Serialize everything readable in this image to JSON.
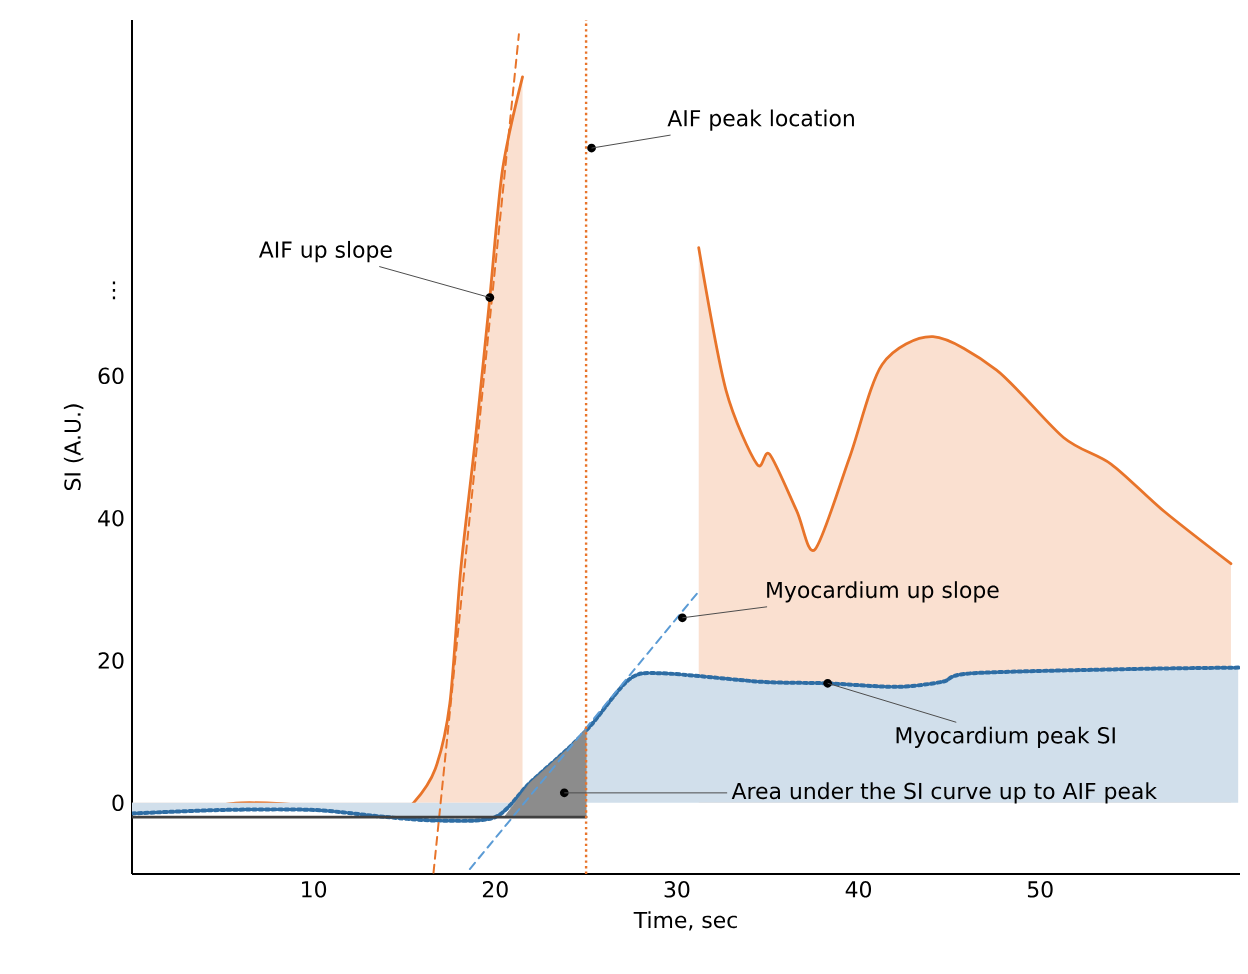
{
  "chart_data": {
    "type": "area",
    "xlabel": "Time, sec",
    "ylabel": "SI (A.U.)",
    "xlim": [
      0,
      61
    ],
    "ylim": [
      -10,
      110
    ],
    "xticks": [
      10,
      20,
      30,
      40,
      50
    ],
    "yticks": [
      0,
      20,
      40,
      60,
      {
        "value": 72,
        "label": "⋮"
      }
    ],
    "grid": false,
    "series": [
      {
        "color": "#e8742a",
        "line_style": "solid",
        "x": [
          0,
          3,
          6,
          10,
          13,
          14.5,
          15.5,
          16.7,
          17.5,
          18.1,
          18.9,
          19.7,
          20.4,
          21.5,
          26,
          31.2,
          32.7,
          34.4,
          35.1,
          36.6,
          37.6,
          39.5,
          41.3,
          44.1,
          47.6,
          51.3,
          53.9,
          56.8,
          60.5
        ],
        "values": [
          -0.5,
          -1,
          0,
          -0.5,
          -1.7,
          -1.5,
          0,
          4.8,
          14,
          32.8,
          51,
          71,
          89,
          102,
          null,
          78,
          58,
          47.6,
          49,
          41,
          35.6,
          48.5,
          61.6,
          65.5,
          60.8,
          51.3,
          47.6,
          41,
          33.6
        ]
      },
      {
        "color": "#2e6da4",
        "line_style": "dotted",
        "x": [
          0,
          5,
          10,
          14,
          17,
          20,
          21.9,
          24,
          25.3,
          27.4,
          29.2,
          34.7,
          38.2,
          42.1,
          44.6,
          46.2,
          55,
          60.9
        ],
        "values": [
          -1.5,
          -1,
          -1,
          -2,
          -2.5,
          -2,
          2.8,
          7.6,
          11,
          17.4,
          18.2,
          17,
          16.8,
          16.3,
          17,
          18.2,
          18.8,
          19
        ]
      },
      {
        "type": "line",
        "color": "#e8742a",
        "line_style": "dashed",
        "x": [
          16.6,
          21.3
        ],
        "values": [
          -9.8,
          108
        ]
      },
      {
        "type": "line",
        "color": "#5b9bd5",
        "line_style": "dashed",
        "x": [
          18.6,
          31.2
        ],
        "values": [
          -9.3,
          29.7
        ]
      },
      {
        "type": "line",
        "color": "#404040",
        "line_style": "solid",
        "x": [
          0,
          25
        ],
        "values": [
          -2,
          -2
        ]
      },
      {
        "color": "#8c8c8c",
        "x": [
          20.5,
          21.9,
          24,
          25,
          25
        ],
        "values": [
          -2,
          2.8,
          7.6,
          10.4,
          -2
        ]
      }
    ],
    "ref_lines": [
      {
        "axis": "x",
        "value": 25,
        "color": "#e8742a",
        "line_style": "dotted"
      }
    ],
    "annotations": [
      {
        "text": "AIF up slope",
        "x": 19.7,
        "y": 71
      },
      {
        "text": "AIF peak location",
        "x": 25.3,
        "y": 92
      },
      {
        "text": "Myocardium up slope",
        "x": 30.3,
        "y": 26
      },
      {
        "text": "Myocardium peak SI",
        "x": 38.3,
        "y": 16.8
      },
      {
        "text": "Area under the SI curve up to AIF peak",
        "x": 23.8,
        "y": 1.4
      }
    ]
  }
}
